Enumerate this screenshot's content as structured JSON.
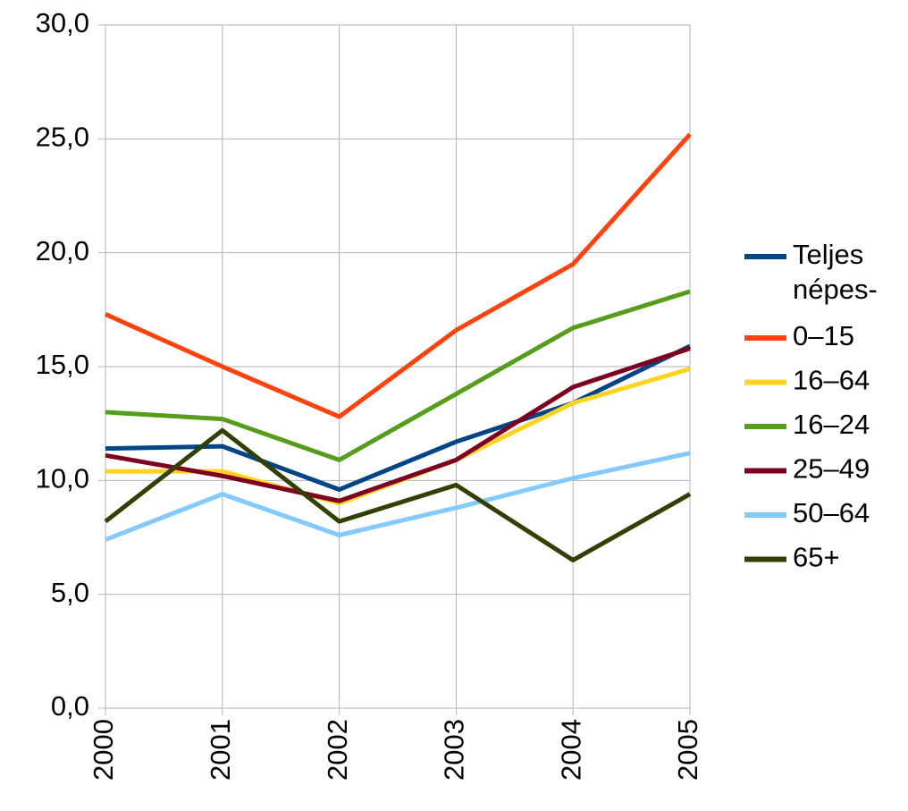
{
  "chart_data": {
    "type": "line",
    "categories": [
      "2000",
      "2001",
      "2002",
      "2003",
      "2004",
      "2005"
    ],
    "series": [
      {
        "name": "Teljes népes-",
        "color": "#004586",
        "values": [
          11.4,
          11.5,
          9.6,
          11.7,
          13.4,
          15.9
        ]
      },
      {
        "name": "0–15",
        "color": "#ff420e",
        "values": [
          17.3,
          15.0,
          12.8,
          16.6,
          19.5,
          25.2
        ]
      },
      {
        "name": "16–64",
        "color": "#ffd320",
        "values": [
          10.4,
          10.4,
          9.0,
          10.9,
          13.4,
          14.9
        ]
      },
      {
        "name": "16–24",
        "color": "#579d1c",
        "values": [
          13.0,
          12.7,
          10.9,
          13.8,
          16.7,
          18.3
        ]
      },
      {
        "name": "25–49",
        "color": "#7e0021",
        "values": [
          11.1,
          10.2,
          9.1,
          10.9,
          14.1,
          15.8
        ]
      },
      {
        "name": "50–64",
        "color": "#83caff",
        "values": [
          7.4,
          9.4,
          7.6,
          8.8,
          10.1,
          11.2
        ]
      },
      {
        "name": "65+",
        "color": "#314004",
        "values": [
          8.2,
          12.2,
          8.2,
          9.8,
          6.5,
          9.4
        ]
      }
    ],
    "ylim": [
      0,
      30
    ],
    "yticks": [
      {
        "value": 0,
        "label": "0,0"
      },
      {
        "value": 5,
        "label": "5,0"
      },
      {
        "value": 10,
        "label": "10,0"
      },
      {
        "value": 15,
        "label": "15,0"
      },
      {
        "value": 20,
        "label": "20,0"
      },
      {
        "value": 25,
        "label": "25,0"
      },
      {
        "value": 30,
        "label": "30,0"
      }
    ],
    "grid": true,
    "legend": "right"
  }
}
